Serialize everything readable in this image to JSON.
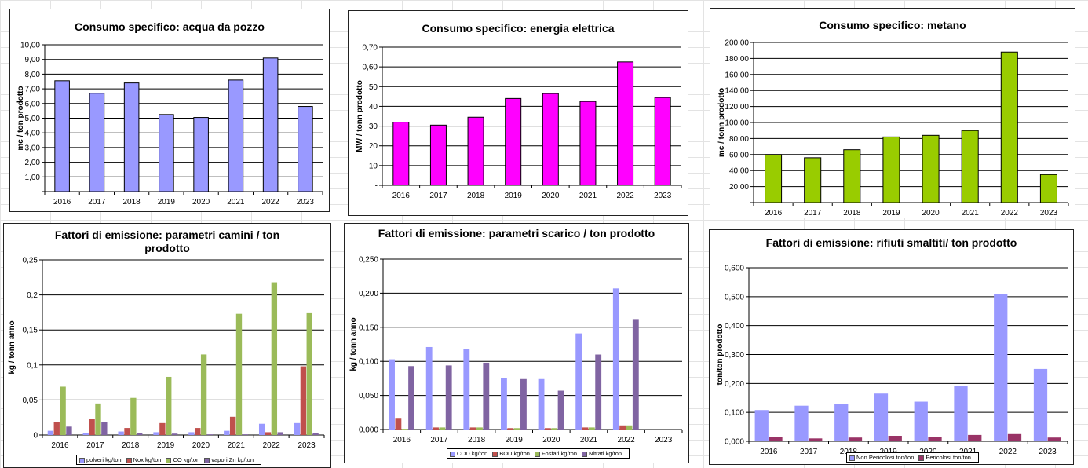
{
  "charts": [
    {
      "title": "Consumo specifico: acqua da pozzo",
      "ylabel": "mc / ton prodotto",
      "ticks": [
        "-",
        "1,00",
        "2,00",
        "3,00",
        "4,00",
        "5,00",
        "6,00",
        "7,00",
        "8,00",
        "9,00",
        "10,00"
      ],
      "chart_data": {
        "type": "bar",
        "categories": [
          "2016",
          "2017",
          "2018",
          "2019",
          "2020",
          "2021",
          "2022",
          "2023"
        ],
        "series": [
          {
            "values": [
              7.55,
              6.7,
              7.4,
              5.25,
              5.05,
              7.6,
              9.1,
              5.8
            ],
            "color": "#9999ff"
          }
        ],
        "ylim": [
          0,
          10
        ]
      }
    },
    {
      "title": "Consumo specifico: energia elettrica",
      "ylabel": "MW / tonn prodotto",
      "ticks": [
        "-",
        "10",
        "20",
        "30",
        "40",
        "50",
        "0,60",
        "0,70"
      ],
      "chart_data": {
        "type": "bar",
        "categories": [
          "2016",
          "2017",
          "2018",
          "2019",
          "2020",
          "2021",
          "2022",
          "2023"
        ],
        "series": [
          {
            "values": [
              32,
              30.5,
              34.5,
              44,
              46.5,
              42.5,
              62.5,
              44.5
            ],
            "color": "#ff00ff"
          }
        ],
        "ylim": [
          0,
          70
        ]
      }
    },
    {
      "title": "Consumo specifico: metano",
      "ylabel": "mc / tonn prodotto",
      "ticks": [
        "-",
        "20,00",
        "40,00",
        "60,00",
        "80,00",
        "100,00",
        "120,00",
        "140,00",
        "160,00",
        "180,00",
        "200,00"
      ],
      "chart_data": {
        "type": "bar",
        "categories": [
          "2016",
          "2017",
          "2018",
          "2019",
          "2020",
          "2021",
          "2022",
          "2023"
        ],
        "series": [
          {
            "values": [
              60,
              56,
              66,
              82,
              84,
              90,
              188,
              35
            ],
            "color": "#99cc00"
          }
        ],
        "ylim": [
          0,
          200
        ]
      }
    },
    {
      "title": "Fattori di emissione: parametri camini / ton prodotto",
      "ylabel": "kg / tonn anno",
      "ticks": [
        "0",
        "0,05",
        "0,1",
        "0,15",
        "0,2",
        "0,25"
      ],
      "chart_data": {
        "type": "bar",
        "categories": [
          "2016",
          "2017",
          "2018",
          "2019",
          "2020",
          "2021",
          "2022",
          "2023"
        ],
        "series": [
          {
            "name": "polveri kg/ton",
            "color": "#9999ff",
            "values": [
              0.006,
              0.003,
              0.005,
              0.004,
              0.004,
              0.006,
              0.016,
              0.017
            ]
          },
          {
            "name": "Nox kg/ton",
            "color": "#c0504d",
            "values": [
              0.018,
              0.023,
              0.01,
              0.017,
              0.01,
              0.026,
              0.004,
              0.098
            ]
          },
          {
            "name": "CO kg/ton",
            "color": "#9bbb59",
            "values": [
              0.069,
              0.045,
              0.053,
              0.083,
              0.115,
              0.173,
              0.218,
              0.175
            ]
          },
          {
            "name": "vapori Zn kg/ton",
            "color": "#8064a2",
            "values": [
              0.012,
              0.019,
              0.003,
              0.002,
              0.001,
              0.001,
              0.004,
              0.003
            ]
          }
        ],
        "ylim": [
          0,
          0.25
        ]
      }
    },
    {
      "title": "Fattori di emissione: parametri scarico / ton prodotto",
      "ylabel": "kg / tonn anno",
      "ticks": [
        "0,000",
        "0,050",
        "0,100",
        "0,150",
        "0,200",
        "0,250"
      ],
      "chart_data": {
        "type": "bar",
        "categories": [
          "2016",
          "2017",
          "2018",
          "2019",
          "2020",
          "2021",
          "2022",
          "2023"
        ],
        "series": [
          {
            "name": "COD kg/ton",
            "color": "#9999ff",
            "values": [
              0.103,
              0.121,
              0.118,
              0.075,
              0.074,
              0.141,
              0.207,
              0
            ]
          },
          {
            "name": "BOD kg/ton",
            "color": "#c0504d",
            "values": [
              0.017,
              0.003,
              0.003,
              0.002,
              0.002,
              0.003,
              0.006,
              0
            ]
          },
          {
            "name": "Fosfati kg/ton",
            "color": "#9bbb59",
            "values": [
              0.001,
              0.003,
              0.003,
              0.002,
              0.002,
              0.003,
              0.006,
              0
            ]
          },
          {
            "name": "Nitrati kg/ton",
            "color": "#8064a2",
            "values": [
              0.093,
              0.094,
              0.098,
              0.074,
              0.057,
              0.11,
              0.162,
              0
            ]
          }
        ],
        "ylim": [
          0,
          0.25
        ]
      }
    },
    {
      "title": "Fattori di emissione: rifiuti smaltiti/ ton prodotto",
      "ylabel": "ton/ton prodotto",
      "ticks": [
        "0,000",
        "0,100",
        "0,200",
        "0,300",
        "0,400",
        "0,500",
        "0,600"
      ],
      "chart_data": {
        "type": "bar",
        "categories": [
          "2016",
          "2017",
          "2018",
          "2019",
          "2020",
          "2021",
          "2022",
          "2023"
        ],
        "series": [
          {
            "name": "Non Pericolosi ton/ton",
            "color": "#9999ff",
            "values": [
              0.108,
              0.123,
              0.13,
              0.165,
              0.137,
              0.19,
              0.508,
              0.25
            ]
          },
          {
            "name": "Pericolosi ton/ton",
            "color": "#993366",
            "values": [
              0.016,
              0.01,
              0.013,
              0.019,
              0.016,
              0.022,
              0.025,
              0.013
            ]
          }
        ],
        "ylim": [
          0,
          0.6
        ]
      }
    }
  ]
}
